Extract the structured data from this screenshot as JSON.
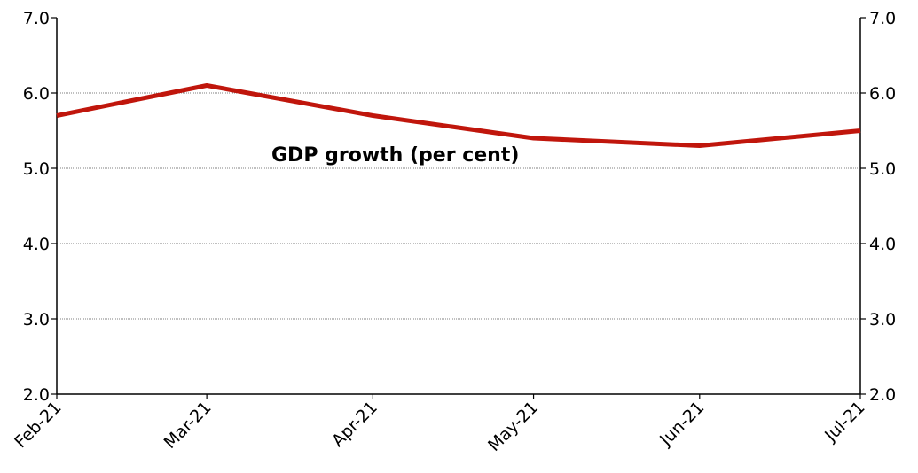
{
  "chart_data": {
    "type": "line",
    "categories": [
      "Feb-21",
      "Mar-21",
      "Apr-21",
      "May-21",
      "Jun-21",
      "Jul-21"
    ],
    "x": [
      "2021-02-01",
      "2021-03-01",
      "2021-04-01",
      "2021-05-01",
      "2021-06-01",
      "2021-07-01"
    ],
    "series": [
      {
        "values": [
          5.7,
          6.1,
          5.7,
          5.4,
          5.3,
          5.5
        ],
        "color": "#C0160C"
      }
    ],
    "ylim": [
      2.0,
      7.0
    ],
    "yticks": [
      "2.0",
      "3.0",
      "4.0",
      "5.0",
      "6.0",
      "7.0"
    ],
    "secondary_yticks": [
      "2.0",
      "3.0",
      "4.0",
      "5.0",
      "6.0",
      "7.0"
    ],
    "annotation": "GDP growth (per cent)",
    "grid": true,
    "gridline_color": "#808080",
    "axis_color": "#000000"
  }
}
